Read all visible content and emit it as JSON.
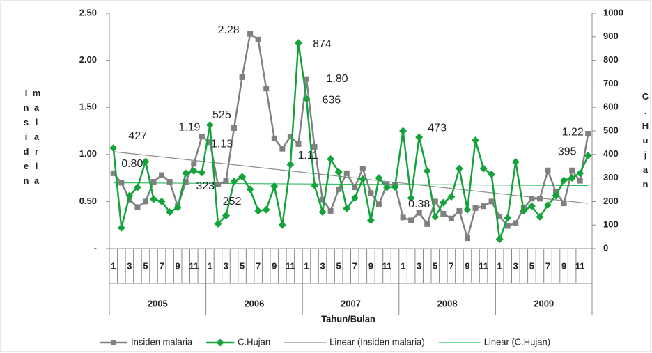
{
  "chart_data": {
    "type": "line",
    "y_label": "Insiden malaria",
    "y2_label": "C.Hujan",
    "x_label": "Tahun/Bulan",
    "categories": [
      "1",
      null,
      "3",
      null,
      "5",
      null,
      "7",
      null,
      "9",
      null,
      "11",
      null,
      "1",
      null,
      "3",
      null,
      "5",
      null,
      "7",
      null,
      "9",
      null,
      "11",
      null,
      "1",
      null,
      "3",
      null,
      "5",
      null,
      "7",
      null,
      "9",
      null,
      "11",
      null,
      "1",
      null,
      "3",
      null,
      "5",
      null,
      "7",
      null,
      "9",
      null,
      "11",
      null,
      "1",
      null,
      "3",
      null,
      "5",
      null,
      "7",
      null,
      "9",
      null,
      "11",
      null
    ],
    "groups": [
      "2005",
      "2006",
      "2007",
      "2008",
      "2009"
    ],
    "series": [
      {
        "name": "Insiden malaria",
        "color": "#808080",
        "marker": "square",
        "axis": "y",
        "values": [
          0.8,
          0.7,
          0.52,
          0.44,
          0.5,
          0.71,
          0.78,
          0.71,
          0.45,
          0.71,
          0.9,
          1.19,
          1.13,
          0.68,
          0.72,
          1.28,
          1.82,
          2.28,
          2.22,
          1.7,
          1.17,
          1.06,
          1.19,
          1.11,
          1.8,
          1.08,
          0.52,
          0.4,
          0.63,
          0.8,
          0.65,
          0.85,
          0.59,
          0.47,
          0.68,
          0.68,
          0.33,
          0.3,
          0.38,
          0.26,
          0.5,
          0.37,
          0.32,
          0.4,
          0.11,
          0.43,
          0.45,
          0.5,
          0.34,
          0.24,
          0.27,
          0.43,
          0.53,
          0.53,
          0.83,
          0.6,
          0.48,
          0.83,
          0.72,
          1.22
        ],
        "value_labels": [
          "0.80",
          null,
          null,
          null,
          null,
          null,
          null,
          null,
          null,
          null,
          null,
          "1.19",
          "1.13",
          null,
          null,
          null,
          null,
          "2.28",
          null,
          null,
          null,
          null,
          null,
          "1.11",
          "1.80",
          null,
          null,
          null,
          null,
          null,
          null,
          null,
          null,
          null,
          null,
          null,
          null,
          null,
          "0.38",
          null,
          null,
          null,
          null,
          null,
          null,
          null,
          null,
          null,
          null,
          null,
          null,
          null,
          null,
          null,
          null,
          null,
          null,
          null,
          null,
          "1.22"
        ]
      },
      {
        "name": "C.Hujan",
        "color": "#13a33a",
        "marker": "diamond",
        "axis": "y2",
        "values": [
          427,
          88,
          225,
          260,
          370,
          210,
          200,
          155,
          175,
          320,
          330,
          323,
          525,
          105,
          140,
          285,
          305,
          252,
          160,
          165,
          265,
          100,
          357,
          874,
          636,
          268,
          155,
          380,
          325,
          170,
          215,
          295,
          120,
          300,
          260,
          262,
          500,
          215,
          473,
          330,
          135,
          195,
          220,
          340,
          165,
          460,
          340,
          315,
          40,
          130,
          368,
          160,
          180,
          135,
          185,
          225,
          290,
          300,
          320,
          395
        ],
        "value_labels": [
          "427",
          null,
          null,
          null,
          null,
          null,
          null,
          null,
          null,
          null,
          null,
          "323",
          "525",
          null,
          null,
          null,
          null,
          "252",
          null,
          null,
          null,
          null,
          null,
          "874",
          "636",
          null,
          null,
          null,
          null,
          null,
          null,
          null,
          null,
          null,
          null,
          null,
          null,
          null,
          "473",
          null,
          null,
          null,
          null,
          null,
          null,
          null,
          null,
          null,
          null,
          null,
          null,
          null,
          null,
          null,
          null,
          null,
          null,
          null,
          null,
          "395"
        ]
      }
    ],
    "trendlines": [
      {
        "name": "Linear (Insiden malaria)",
        "series": 0,
        "color": "#8c8c8c"
      },
      {
        "name": "Linear (C.Hujan)",
        "series": 1,
        "color": "#2ebd5f"
      }
    ],
    "ylim": [
      0,
      2.5
    ],
    "yticks": [
      {
        "value": 0,
        "label": "-"
      },
      {
        "value": 0.5,
        "label": "0.50"
      },
      {
        "value": 1,
        "label": "1.00"
      },
      {
        "value": 1.5,
        "label": "1.50"
      },
      {
        "value": 2,
        "label": "2.00"
      },
      {
        "value": 2.5,
        "label": "2.50"
      }
    ],
    "y2lim": [
      0,
      1000
    ],
    "y2ticks": [
      0,
      100,
      200,
      300,
      400,
      500,
      600,
      700,
      800,
      900,
      1000
    ],
    "legend": "bottom"
  }
}
